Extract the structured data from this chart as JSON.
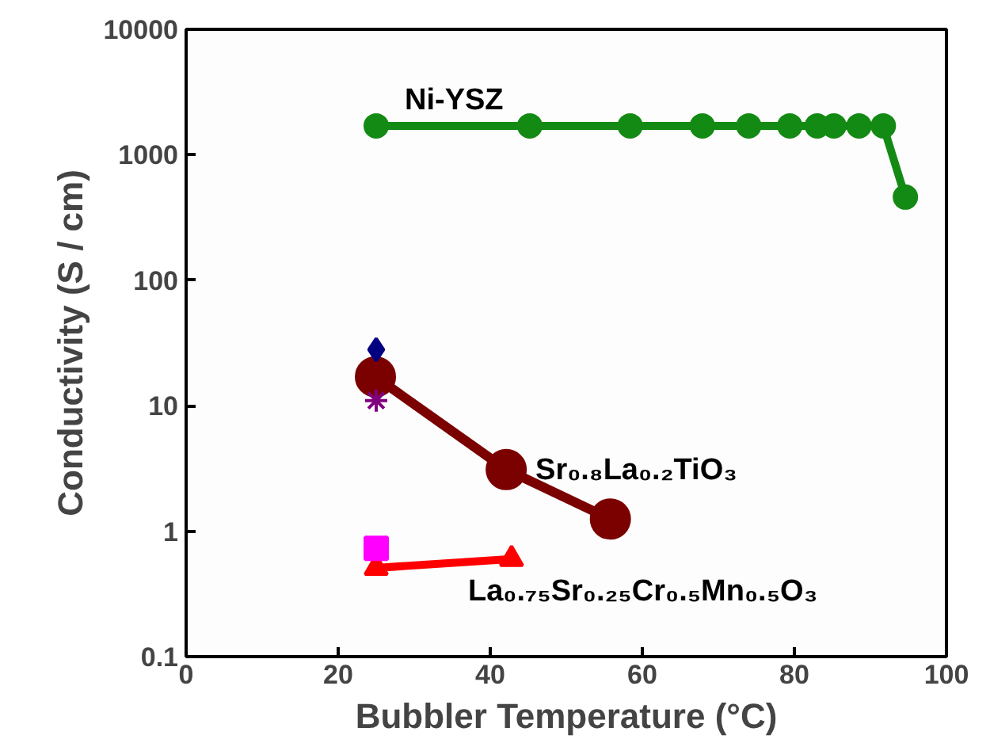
{
  "chart_data": {
    "type": "line",
    "xlabel": "Bubbler Temperature (°C)",
    "ylabel": "Conductivity (S / cm)",
    "log": "y",
    "xlim": [
      0,
      100
    ],
    "xticks": [
      0,
      20,
      40,
      60,
      80,
      100
    ],
    "ylim": [
      0.1,
      10000
    ],
    "yticks": [
      0.1,
      1,
      10,
      100,
      1000,
      10000
    ],
    "grid": false,
    "series": [
      {
        "name": "Ni-YSZ",
        "color": "#138a13",
        "marker": "circle",
        "x": [
          25,
          45.2,
          58.4,
          67.9,
          74,
          79.4,
          83,
          85.2,
          88.5,
          91.7,
          94.6
        ],
        "values": [
          1700,
          1700,
          1700,
          1700,
          1700,
          1700,
          1700,
          1700,
          1700,
          1700,
          460
        ]
      },
      {
        "name": "Sr₀.₈La₀.₂TiO₃",
        "color": "#7b0000",
        "marker": "circle",
        "x": [
          24.9,
          42.1,
          55.8
        ],
        "values": [
          17,
          3.1,
          1.25
        ]
      },
      {
        "name": "La₀.₇₅Sr₀.₂₅Cr₀.₅Mn₀.₅O₃",
        "color": "#ff0000",
        "marker": "triangle",
        "x": [
          25,
          42.8
        ],
        "values": [
          0.51,
          0.6
        ]
      },
      {
        "type": "scatter",
        "color": "#000080",
        "marker": "diamond",
        "x": [
          25
        ],
        "values": [
          28
        ]
      },
      {
        "type": "scatter",
        "color": "#800080",
        "marker": "cross",
        "x": [
          25
        ],
        "values": [
          11
        ]
      },
      {
        "type": "scatter",
        "color": "#ff00ff",
        "marker": "square",
        "x": [
          25
        ],
        "values": [
          0.73
        ]
      }
    ]
  }
}
